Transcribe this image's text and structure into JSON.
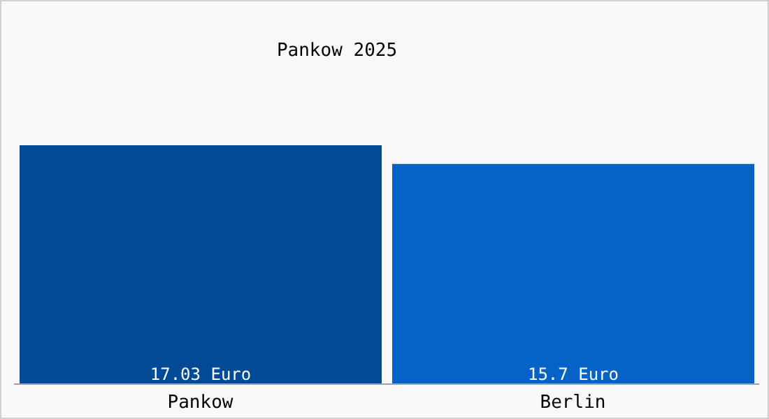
{
  "chart_data": {
    "type": "bar",
    "title": "Pankow 2025",
    "categories": [
      "Pankow",
      "Berlin"
    ],
    "values": [
      17.03,
      15.7
    ],
    "colors": [
      "#034a96",
      "#0563c8"
    ],
    "value_labels": [
      "17.03 Euro",
      "15.7 Euro"
    ],
    "tick_labels": "x"
  }
}
